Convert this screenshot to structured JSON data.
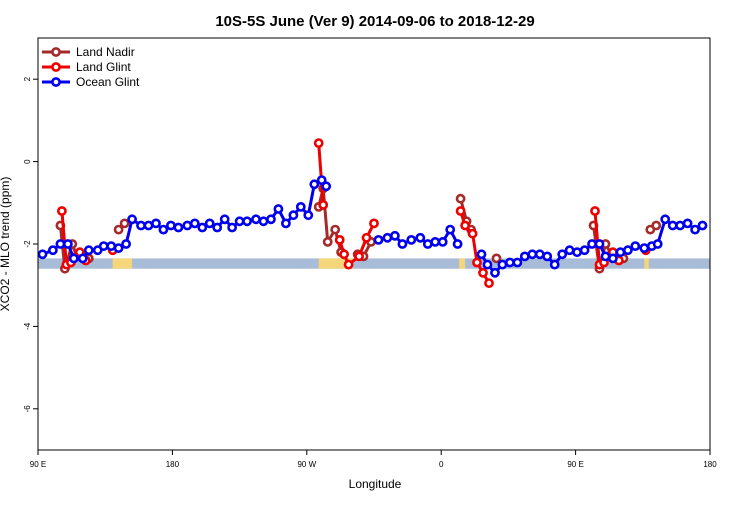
{
  "chart_data": {
    "type": "line",
    "title": "10S-5S June (Ver 9)   2014-09-06 to 2018-12-29",
    "xlabel": "Longitude",
    "ylabel": "XCO2 - MLO trend (ppm)",
    "xlim": [
      90,
      540
    ],
    "ylim": [
      -7,
      3
    ],
    "xticks": [
      {
        "value": 90,
        "label": "90 E"
      },
      {
        "value": 180,
        "label": "180"
      },
      {
        "value": 270,
        "label": "90 W"
      },
      {
        "value": 360,
        "label": "0"
      },
      {
        "value": 450,
        "label": "90 E"
      },
      {
        "value": 540,
        "label": "180"
      }
    ],
    "yticks": [
      {
        "value": 2,
        "label": "2"
      },
      {
        "value": 0,
        "label": "0"
      },
      {
        "value": -2,
        "label": "-2"
      },
      {
        "value": -4,
        "label": "-4"
      },
      {
        "value": -6,
        "label": "-6"
      }
    ],
    "grid": false,
    "legend_position": "top-left",
    "land_band": {
      "y_range": [
        -2.6,
        -2.35
      ],
      "ocean_color": "#a8bcd8",
      "land_color": "#f5d67a",
      "land_segments": [
        [
          140,
          153
        ],
        [
          278,
          301
        ],
        [
          372,
          376
        ],
        [
          496,
          499
        ],
        [
          565,
          570
        ]
      ]
    },
    "series": [
      {
        "name": "Land Nadir",
        "color": "#a52a2a",
        "segments": [
          [
            [
              105,
              -1.55
            ],
            [
              108,
              -2.6
            ],
            [
              113,
              -2.0
            ],
            [
              116,
              -2.3
            ]
          ],
          [
            [
              124,
              -2.35
            ]
          ],
          [
            [
              144,
              -1.65
            ],
            [
              148,
              -1.5
            ]
          ],
          [
            [
              278,
              -1.1
            ],
            [
              281,
              -0.65
            ],
            [
              284,
              -1.95
            ],
            [
              289,
              -1.65
            ],
            [
              293,
              -2.2
            ]
          ],
          [
            [
              304,
              -2.25
            ],
            [
              308,
              -2.3
            ],
            [
              313,
              -1.95
            ]
          ],
          [
            [
              373,
              -0.9
            ],
            [
              377,
              -1.45
            ],
            [
              380,
              -1.65
            ]
          ],
          [
            [
              397,
              -2.35
            ]
          ],
          [
            [
              462,
              -1.55
            ],
            [
              466,
              -2.6
            ],
            [
              470,
              -2.0
            ],
            [
              474,
              -2.25
            ]
          ],
          [
            [
              482,
              -2.35
            ]
          ],
          [
            [
              500,
              -1.65
            ],
            [
              504,
              -1.55
            ]
          ]
        ]
      },
      {
        "name": "Land Glint",
        "color": "#ee0000",
        "segments": [
          [
            [
              106,
              -1.2
            ],
            [
              109,
              -2.5
            ],
            [
              112,
              -2.45
            ],
            [
              118,
              -2.2
            ],
            [
              122,
              -2.4
            ]
          ],
          [
            [
              140,
              -2.15
            ]
          ],
          [
            [
              278,
              0.45
            ],
            [
              281,
              -1.05
            ]
          ],
          [
            [
              292,
              -1.9
            ],
            [
              295,
              -2.25
            ],
            [
              298,
              -2.5
            ],
            [
              305,
              -2.3
            ],
            [
              310,
              -1.85
            ],
            [
              315,
              -1.5
            ]
          ],
          [
            [
              373,
              -1.2
            ],
            [
              376,
              -1.55
            ],
            [
              381,
              -1.75
            ],
            [
              384,
              -2.45
            ],
            [
              388,
              -2.7
            ],
            [
              392,
              -2.95
            ]
          ],
          [
            [
              463,
              -1.2
            ],
            [
              466,
              -2.5
            ],
            [
              469,
              -2.45
            ],
            [
              475,
              -2.2
            ],
            [
              479,
              -2.4
            ]
          ],
          [
            [
              497,
              -2.15
            ]
          ]
        ]
      },
      {
        "name": "Ocean Glint",
        "color": "#0000ee",
        "segments": [
          [
            [
              93,
              -2.25
            ],
            [
              100,
              -2.15
            ],
            [
              105,
              -2.0
            ],
            [
              110,
              -2.0
            ],
            [
              114,
              -2.35
            ],
            [
              120,
              -2.35
            ],
            [
              124,
              -2.15
            ],
            [
              130,
              -2.15
            ],
            [
              134,
              -2.05
            ],
            [
              139,
              -2.05
            ],
            [
              144,
              -2.1
            ],
            [
              149,
              -2.0
            ],
            [
              153,
              -1.4
            ],
            [
              159,
              -1.55
            ],
            [
              164,
              -1.55
            ],
            [
              169,
              -1.5
            ],
            [
              174,
              -1.65
            ],
            [
              179,
              -1.55
            ],
            [
              184,
              -1.6
            ],
            [
              190,
              -1.55
            ],
            [
              195,
              -1.5
            ],
            [
              200,
              -1.6
            ],
            [
              205,
              -1.5
            ],
            [
              210,
              -1.6
            ],
            [
              215,
              -1.4
            ],
            [
              220,
              -1.6
            ],
            [
              225,
              -1.45
            ],
            [
              230,
              -1.45
            ],
            [
              236,
              -1.4
            ],
            [
              241,
              -1.45
            ],
            [
              246,
              -1.4
            ],
            [
              251,
              -1.15
            ],
            [
              256,
              -1.5
            ],
            [
              261,
              -1.3
            ],
            [
              266,
              -1.1
            ],
            [
              271,
              -1.3
            ],
            [
              275,
              -0.55
            ],
            [
              280,
              -0.45
            ],
            [
              283,
              -0.6
            ]
          ],
          [
            [
              318,
              -1.9
            ],
            [
              324,
              -1.85
            ],
            [
              329,
              -1.8
            ],
            [
              334,
              -2.0
            ],
            [
              340,
              -1.9
            ],
            [
              346,
              -1.85
            ],
            [
              351,
              -2.0
            ],
            [
              356,
              -1.95
            ],
            [
              361,
              -1.95
            ],
            [
              366,
              -1.65
            ],
            [
              371,
              -2.0
            ]
          ],
          [
            [
              387,
              -2.25
            ],
            [
              391,
              -2.5
            ],
            [
              396,
              -2.7
            ],
            [
              401,
              -2.5
            ],
            [
              406,
              -2.45
            ],
            [
              411,
              -2.45
            ],
            [
              416,
              -2.3
            ],
            [
              421,
              -2.25
            ],
            [
              426,
              -2.25
            ],
            [
              431,
              -2.3
            ],
            [
              436,
              -2.5
            ],
            [
              441,
              -2.25
            ],
            [
              446,
              -2.15
            ],
            [
              451,
              -2.2
            ],
            [
              456,
              -2.15
            ],
            [
              461,
              -2.0
            ],
            [
              466,
              -2.0
            ],
            [
              470,
              -2.3
            ],
            [
              475,
              -2.35
            ],
            [
              480,
              -2.2
            ],
            [
              485,
              -2.15
            ],
            [
              490,
              -2.05
            ],
            [
              496,
              -2.1
            ],
            [
              501,
              -2.05
            ],
            [
              505,
              -2.0
            ],
            [
              510,
              -1.4
            ],
            [
              515,
              -1.55
            ],
            [
              520,
              -1.55
            ],
            [
              525,
              -1.5
            ],
            [
              530,
              -1.65
            ],
            [
              535,
              -1.55
            ]
          ]
        ]
      }
    ]
  }
}
